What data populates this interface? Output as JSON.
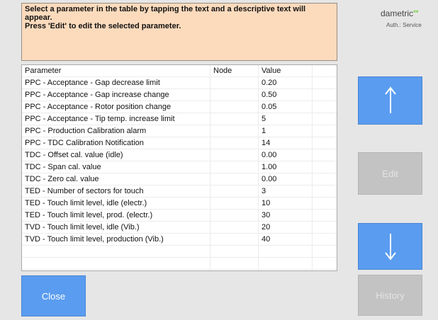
{
  "message": [
    "Select a parameter in the table by tapping the text and a descriptive text will appear.",
    "Press 'Edit' to edit the selected parameter."
  ],
  "brand": "dametric",
  "auth": "Auth.: Service",
  "table": {
    "headers": [
      "Parameter",
      "Node",
      "Value"
    ],
    "rows": [
      [
        "PPC - Acceptance - Gap decrease limit",
        "0.20"
      ],
      [
        "PPC - Acceptance - Gap increase change",
        "0.50"
      ],
      [
        "PPC - Acceptance - Rotor position change",
        "0.05"
      ],
      [
        "PPC - Acceptance - Tip temp. increase limit",
        "5"
      ],
      [
        "PPC - Production Calibration alarm",
        "1"
      ],
      [
        "PPC - TDC Calibration Notification",
        "14"
      ],
      [
        "TDC - Offset cal. value (idle)",
        "0.00"
      ],
      [
        "TDC - Span cal. value",
        "1.00"
      ],
      [
        "TDC - Zero cal. value",
        "0.00"
      ],
      [
        "TED - Number of sectors for touch",
        "3"
      ],
      [
        "TED - Touch limit level, idle (electr.)",
        "10"
      ],
      [
        "TED - Touch limit level, prod. (electr.)",
        "30"
      ],
      [
        "TVD - Touch limit level, idle (Vib.)",
        "20"
      ],
      [
        "TVD - Touch limit level, production (Vib.)",
        "40"
      ]
    ]
  },
  "buttons": {
    "edit": "Edit",
    "close": "Close",
    "history": "History"
  }
}
